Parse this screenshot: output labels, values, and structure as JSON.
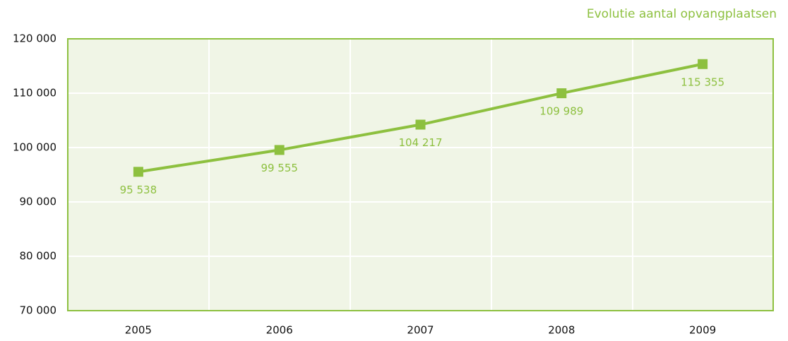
{
  "chart_data": {
    "type": "line",
    "title": "Evolutie aantal opvangplaatsen",
    "categories": [
      "2005",
      "2006",
      "2007",
      "2008",
      "2009"
    ],
    "series": [
      {
        "name": null,
        "color": "#8dc03f",
        "values": [
          95538,
          99555,
          104217,
          109989,
          115355
        ],
        "value_labels": [
          "95 538",
          "99 555",
          "104 217",
          "109 989",
          "115 355"
        ]
      }
    ],
    "ylim": [
      70000,
      120000
    ],
    "yticks": [
      {
        "value": 70000,
        "label": "70 000"
      },
      {
        "value": 80000,
        "label": "80 000"
      },
      {
        "value": 90000,
        "label": "90 000"
      },
      {
        "value": 100000,
        "label": "100 000"
      },
      {
        "value": 110000,
        "label": "110 000"
      },
      {
        "value": 120000,
        "label": "120 000"
      }
    ],
    "grid": true
  }
}
